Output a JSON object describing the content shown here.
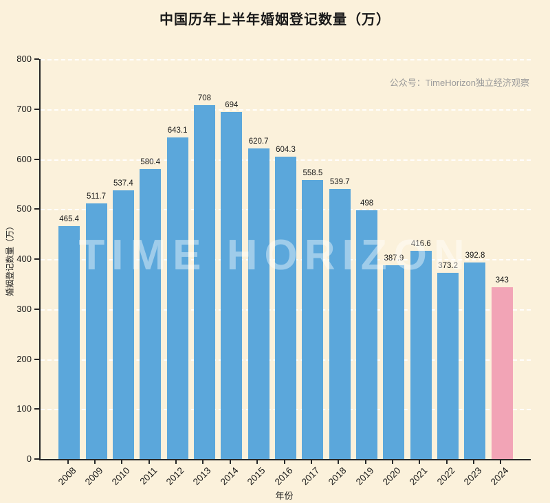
{
  "title": "中国历年上半年婚姻登记数量（万）",
  "annotation": "公众号：TimeHorizon独立经济观察",
  "watermark": "TIME HORIZON",
  "colors": {
    "background": "#FBF1DB",
    "bar": "#5BA7DB",
    "highlight_bar": "#F2A4B6",
    "axis": "#262626",
    "gridline": "rgba(255,255,255,0.9)",
    "annotation_text": "#9b9b9b"
  },
  "chart_data": {
    "type": "bar",
    "title": "中国历年上半年婚姻登记数量（万）",
    "xlabel": "年份",
    "ylabel": "婚姻登记数量（万）",
    "categories": [
      "2008",
      "2009",
      "2010",
      "2011",
      "2012",
      "2013",
      "2014",
      "2015",
      "2016",
      "2017",
      "2018",
      "2019",
      "2020",
      "2021",
      "2022",
      "2023",
      "2024"
    ],
    "values": [
      465.4,
      511.7,
      537.4,
      580.4,
      643.1,
      708,
      694,
      620.7,
      604.3,
      558.5,
      539.7,
      498,
      387.9,
      416.6,
      373.2,
      392.8,
      343
    ],
    "value_labels": [
      "465.4",
      "511.7",
      "537.4",
      "580.4",
      "643.1",
      "708",
      "694",
      "620.7",
      "604.3",
      "558.5",
      "539.7",
      "498",
      "387.9",
      "416.6",
      "373.2",
      "392.8",
      "343"
    ],
    "highlight_index": 16,
    "ylim": [
      0,
      800
    ],
    "ytick_step": 100,
    "grid": "horizontal dashed",
    "legend": "none"
  }
}
